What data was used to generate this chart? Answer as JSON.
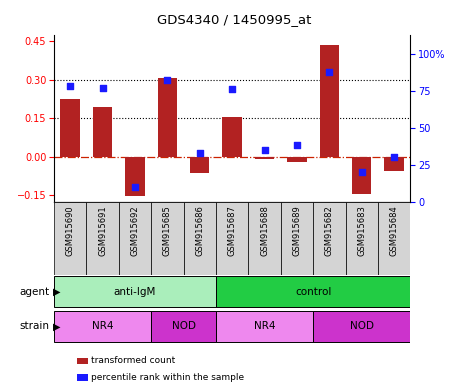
{
  "title": "GDS4340 / 1450995_at",
  "samples": [
    "GSM915690",
    "GSM915691",
    "GSM915692",
    "GSM915685",
    "GSM915686",
    "GSM915687",
    "GSM915688",
    "GSM915689",
    "GSM915682",
    "GSM915683",
    "GSM915684"
  ],
  "bar_values": [
    0.225,
    0.195,
    -0.155,
    0.305,
    -0.065,
    0.155,
    -0.01,
    -0.02,
    0.435,
    -0.145,
    -0.055
  ],
  "dot_values": [
    78,
    77,
    10,
    82,
    33,
    76,
    35,
    38,
    88,
    20,
    30
  ],
  "ylim_left": [
    -0.175,
    0.475
  ],
  "ylim_right": [
    0,
    113
  ],
  "yticks_left": [
    -0.15,
    0.0,
    0.15,
    0.3,
    0.45
  ],
  "yticks_right": [
    0,
    25,
    50,
    75,
    100
  ],
  "ytick_labels_right": [
    "0",
    "25",
    "50",
    "75",
    "100%"
  ],
  "hline_0_color": "#cc2200",
  "hline_0_style": "-.",
  "hline_other_color": "black",
  "hline_other_style": ":",
  "hlines": [
    0.0,
    0.15,
    0.3
  ],
  "bar_color": "#b22222",
  "dot_color": "#1a1aff",
  "dot_size": 22,
  "agent_groups": [
    {
      "label": "anti-IgM",
      "start": 0,
      "end": 5,
      "color": "#aaeebb"
    },
    {
      "label": "control",
      "start": 5,
      "end": 11,
      "color": "#22cc44"
    }
  ],
  "strain_groups": [
    {
      "label": "NR4",
      "start": 0,
      "end": 3,
      "color": "#ee88ee"
    },
    {
      "label": "NOD",
      "start": 3,
      "end": 5,
      "color": "#cc33cc"
    },
    {
      "label": "NR4",
      "start": 5,
      "end": 8,
      "color": "#ee88ee"
    },
    {
      "label": "NOD",
      "start": 8,
      "end": 11,
      "color": "#cc33cc"
    }
  ],
  "legend_items": [
    {
      "label": "transformed count",
      "color": "#b22222"
    },
    {
      "label": "percentile rank within the sample",
      "color": "#1a1aff"
    }
  ],
  "agent_label": "agent",
  "strain_label": "strain",
  "figsize": [
    4.69,
    3.84
  ],
  "dpi": 100
}
